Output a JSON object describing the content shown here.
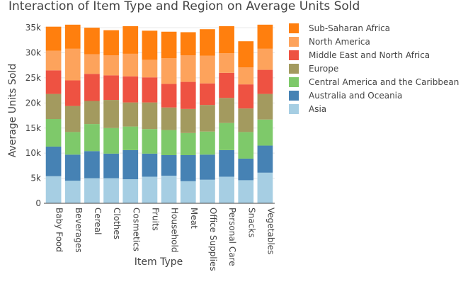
{
  "chart_data": {
    "type": "bar",
    "stacked": true,
    "title": "Interaction of Item Type and Region on Average Units Sold",
    "xlabel": "Item Type",
    "ylabel": "Average Units Sold",
    "ylim": [
      0,
      36000
    ],
    "yticks": [
      0,
      5000,
      10000,
      15000,
      20000,
      25000,
      30000,
      35000
    ],
    "ytick_labels": [
      "0",
      "5k",
      "10k",
      "15k",
      "20k",
      "25k",
      "30k",
      "35k"
    ],
    "grid": true,
    "legend_position": "right",
    "categories": [
      "Baby Food",
      "Beverages",
      "Cereal",
      "Clothes",
      "Cosmetics",
      "Fruits",
      "Household",
      "Meat",
      "Office Supplies",
      "Personal Care",
      "Snacks",
      "Vegetables"
    ],
    "series": [
      {
        "name": "Asia",
        "color": "#a6cee3",
        "values": [
          5400,
          4500,
          5000,
          5000,
          4800,
          5300,
          5500,
          4400,
          4700,
          5300,
          4600,
          6100
        ]
      },
      {
        "name": "Australia and Oceania",
        "color": "#4682b4",
        "values": [
          5900,
          5200,
          5400,
          4900,
          5800,
          4600,
          4100,
          5200,
          5000,
          5300,
          4300,
          5400
        ]
      },
      {
        "name": "Central America and the Caribbean",
        "color": "#7ec96a",
        "values": [
          5500,
          4500,
          5400,
          5100,
          4700,
          4900,
          5000,
          4400,
          4600,
          5400,
          5300,
          5200
        ]
      },
      {
        "name": "Europe",
        "color": "#a39a5f",
        "values": [
          5000,
          5200,
          4600,
          5600,
          4800,
          5300,
          4500,
          4800,
          5300,
          5000,
          4700,
          5100
        ]
      },
      {
        "name": "Middle East and North Africa",
        "color": "#ee5242",
        "values": [
          4700,
          5100,
          5400,
          4900,
          5200,
          5000,
          4700,
          5400,
          4300,
          5000,
          4800,
          4800
        ]
      },
      {
        "name": "North America",
        "color": "#fda35c",
        "values": [
          3900,
          6300,
          3900,
          4000,
          4500,
          3500,
          5100,
          5300,
          5500,
          3900,
          3400,
          4200
        ]
      },
      {
        "name": "Sub-Saharan Africa",
        "color": "#ff7f0e",
        "values": [
          4800,
          4800,
          5300,
          5000,
          5500,
          5800,
          5300,
          4600,
          5300,
          5400,
          5200,
          4800
        ]
      }
    ],
    "legend_order": [
      "Sub-Saharan Africa",
      "North America",
      "Middle East and North Africa",
      "Europe",
      "Central America and the Caribbean",
      "Australia and Oceania",
      "Asia"
    ]
  }
}
